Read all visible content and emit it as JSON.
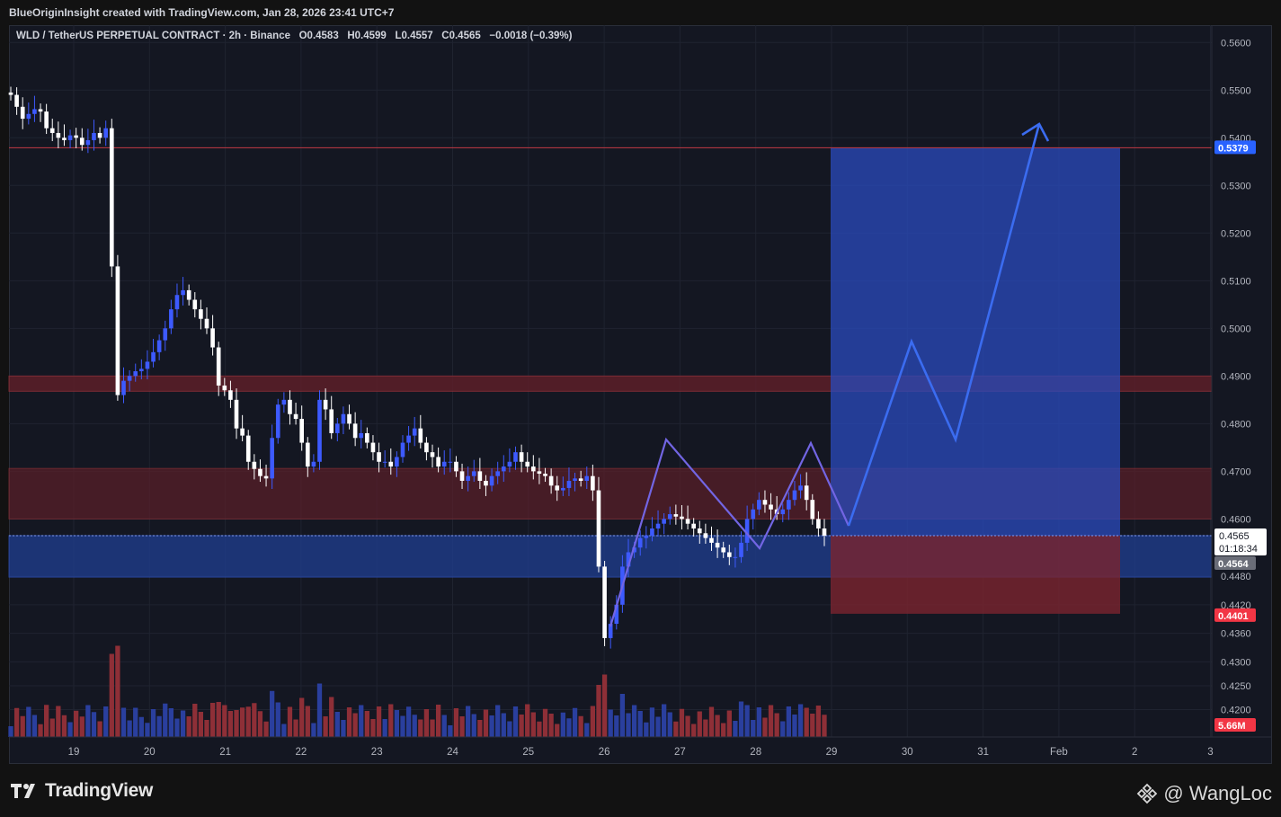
{
  "header": {
    "attribution": "BlueOriginInsight created with TradingView.com, Jan 28, 2026 23:41 UTC+7"
  },
  "legend": {
    "symbol": "WLD / TetherUS PERPETUAL CONTRACT · 2h · Binance",
    "open_label": "O",
    "open": "0.4583",
    "high_label": "H",
    "high": "0.4599",
    "low_label": "L",
    "low": "0.4557",
    "close_label": "C",
    "close": "0.4565",
    "change": "−0.0018 (−0.39%)"
  },
  "price_tags": {
    "target": "0.5379",
    "current": "0.4565",
    "countdown": "01:18:34",
    "mark": "0.4564",
    "stop": "0.4401",
    "volume": "5.66M"
  },
  "footer": {
    "brand": "TradingView",
    "author": "@ WangLoc"
  },
  "colors": {
    "up": "#3d5afe",
    "down": "#ffffff",
    "vol_up": "#2a3f9e",
    "vol_down": "#8e2f37",
    "profit_zone": "#2a4bbd",
    "loss_zone": "#7a2430",
    "resistance_zone": "#5c1f29",
    "support_zone": "#1f3c8a",
    "projection": "#3b6cf0"
  },
  "chart_data": {
    "type": "candlestick",
    "symbol": "WLD/USDT",
    "interval": "2h",
    "ylim": [
      0.4165,
      0.5625
    ],
    "y_ticks": [
      "0.5600",
      "0.5500",
      "0.5400",
      "0.5300",
      "0.5200",
      "0.5100",
      "0.5000",
      "0.4900",
      "0.4800",
      "0.4700",
      "0.4600",
      "0.4480",
      "0.4420",
      "0.4360",
      "0.4300",
      "0.4250",
      "0.4200"
    ],
    "x_ticks": [
      "19",
      "20",
      "21",
      "22",
      "23",
      "24",
      "25",
      "26",
      "27",
      "28",
      "29",
      "30",
      "31",
      "Feb",
      "2",
      "3"
    ],
    "levels": {
      "target": 0.5379,
      "entry_top": 0.4565,
      "stop": 0.4401,
      "resistance_upper": [
        0.4868,
        0.49
      ],
      "resistance_mid": [
        0.46,
        0.4706
      ],
      "support": [
        0.4478,
        0.4565
      ]
    },
    "closes": [
      0.549,
      0.5465,
      0.544,
      0.545,
      0.546,
      0.5455,
      0.542,
      0.541,
      0.54,
      0.5395,
      0.5405,
      0.54,
      0.5385,
      0.5395,
      0.541,
      0.54,
      0.542,
      0.513,
      0.486,
      0.489,
      0.49,
      0.491,
      0.4915,
      0.493,
      0.495,
      0.4975,
      0.5,
      0.504,
      0.507,
      0.508,
      0.506,
      0.504,
      0.502,
      0.5,
      0.496,
      0.488,
      0.487,
      0.485,
      0.479,
      0.4775,
      0.472,
      0.4705,
      0.469,
      0.4685,
      0.477,
      0.484,
      0.485,
      0.482,
      0.481,
      0.476,
      0.471,
      0.472,
      0.485,
      0.483,
      0.478,
      0.48,
      0.482,
      0.48,
      0.477,
      0.478,
      0.476,
      0.474,
      0.472,
      0.472,
      0.471,
      0.473,
      0.476,
      0.4775,
      0.479,
      0.476,
      0.474,
      0.473,
      0.471,
      0.472,
      0.472,
      0.47,
      0.468,
      0.469,
      0.47,
      0.468,
      0.467,
      0.469,
      0.47,
      0.471,
      0.472,
      0.474,
      0.472,
      0.471,
      0.47,
      0.4695,
      0.469,
      0.467,
      0.466,
      0.4665,
      0.468,
      0.4685,
      0.468,
      0.469,
      0.466,
      0.45,
      0.435,
      0.438,
      0.442,
      0.45,
      0.453,
      0.454,
      0.456,
      0.4565,
      0.458,
      0.459,
      0.46,
      0.461,
      0.4605,
      0.46,
      0.459,
      0.458,
      0.457,
      0.456,
      0.455,
      0.454,
      0.453,
      0.452,
      0.452,
      0.455,
      0.46,
      0.462,
      0.464,
      0.463,
      0.462,
      0.461,
      0.462,
      0.464,
      0.466,
      0.467,
      0.464,
      0.46,
      0.458,
      0.4565
    ],
    "volume_unit": "M",
    "last_volume": 5.66
  }
}
